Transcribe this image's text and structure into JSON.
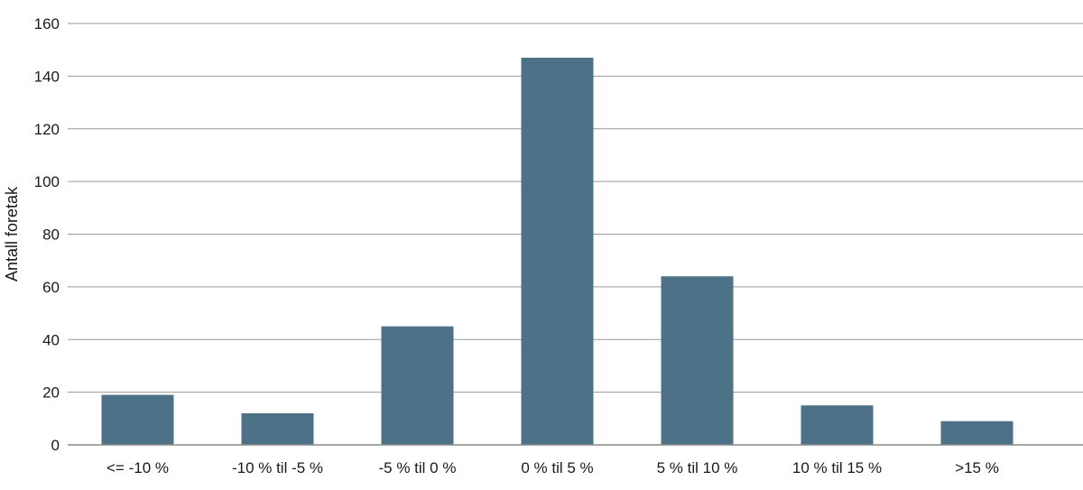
{
  "chart_data": {
    "type": "bar",
    "categories": [
      "<= -10 %",
      "-10 % til -5 %",
      "-5 % til 0 %",
      "0 % til 5 %",
      "5 % til 10 %",
      "10 % til 15 %",
      ">15 %"
    ],
    "values": [
      19,
      12,
      45,
      147,
      64,
      15,
      9
    ],
    "ylabel": "Antall foretak",
    "xlabel": "",
    "ylim": [
      0,
      160
    ],
    "yticks": [
      0,
      20,
      40,
      60,
      80,
      100,
      120,
      140,
      160
    ],
    "grid": true,
    "legend": "none",
    "bar_color": "#4d7287"
  }
}
